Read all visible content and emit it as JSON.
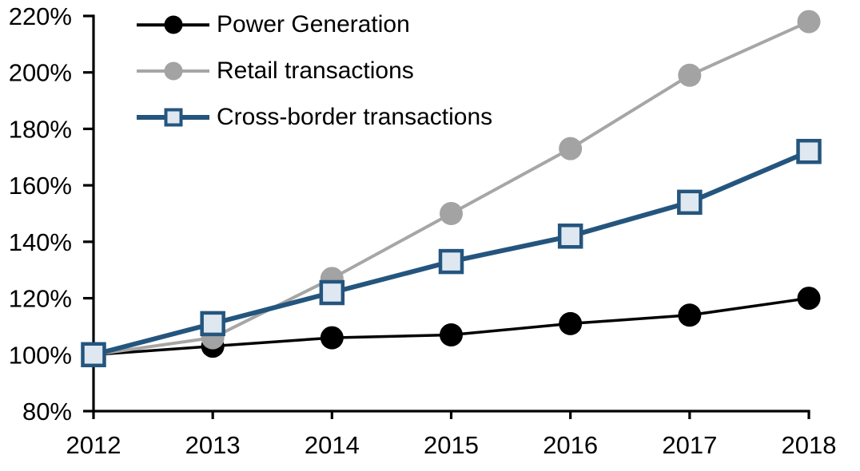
{
  "chart_data": {
    "type": "line",
    "title": "",
    "xlabel": "",
    "ylabel": "",
    "x": [
      2012,
      2013,
      2014,
      2015,
      2016,
      2017,
      2018
    ],
    "xtick_labels": [
      "2012",
      "2013",
      "2014",
      "2015",
      "2016",
      "2017",
      "2018"
    ],
    "series": [
      {
        "name": "Power Generation",
        "values": [
          100,
          103,
          106,
          107,
          111,
          114,
          120
        ],
        "color": "#000000",
        "marker": "circle",
        "marker_fill": "#000000",
        "line_width": 3.5
      },
      {
        "name": "Retail transactions",
        "values": [
          100,
          106,
          127,
          150,
          173,
          199,
          218
        ],
        "color": "#a6a6a6",
        "marker": "circle",
        "marker_fill": "#a3a3a3",
        "line_width": 4
      },
      {
        "name": "Cross-border transactions",
        "values": [
          100,
          111,
          122,
          133,
          142,
          154,
          172
        ],
        "color": "#24557e",
        "marker": "square",
        "marker_fill": "#dfe8f0",
        "line_width": 6
      }
    ],
    "ylim": [
      80,
      220
    ],
    "ytick_step": 20,
    "ytick_labels": [
      "80%",
      "100%",
      "120%",
      "140%",
      "160%",
      "180%",
      "200%",
      "220%"
    ],
    "unit": "%",
    "grid": false,
    "legend_position": "top-left",
    "axis_color": "#000000",
    "background_color": "#ffffff"
  }
}
